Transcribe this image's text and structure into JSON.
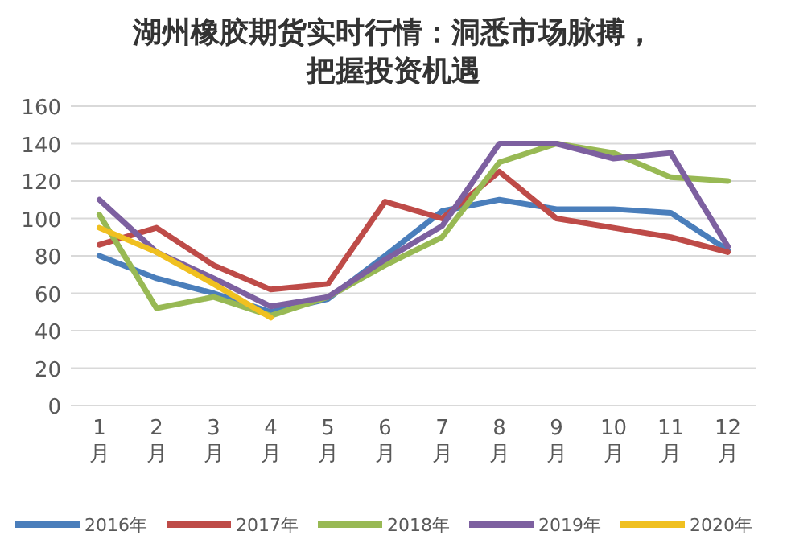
{
  "chart_data": {
    "type": "line",
    "title": "湖州橡胶期货实时行情：洞悉市场脉搏，把握投资机遇",
    "categories": [
      "1月",
      "2月",
      "3月",
      "4月",
      "5月",
      "6月",
      "7月",
      "8月",
      "9月",
      "10月",
      "11月",
      "12月"
    ],
    "series": [
      {
        "name": "2016年",
        "color": "#4a7ebb",
        "values": [
          80,
          68,
          60,
          50,
          57,
          80,
          104,
          110,
          105,
          105,
          103,
          83
        ]
      },
      {
        "name": "2017年",
        "color": "#be4b48",
        "values": [
          86,
          95,
          75,
          62,
          65,
          109,
          100,
          125,
          100,
          95,
          90,
          82
        ]
      },
      {
        "name": "2018年",
        "color": "#98b954",
        "values": [
          102,
          52,
          58,
          48,
          58,
          75,
          90,
          130,
          140,
          135,
          122,
          120
        ]
      },
      {
        "name": "2019年",
        "color": "#7d60a0",
        "values": [
          110,
          82,
          68,
          53,
          58,
          78,
          96,
          140,
          140,
          132,
          135,
          85
        ]
      },
      {
        "name": "2020年",
        "color": "#f0c020",
        "values": [
          95,
          82,
          65,
          47,
          null,
          null,
          null,
          null,
          null,
          null,
          null,
          null
        ]
      }
    ],
    "ylim": [
      0,
      160
    ],
    "yticks": [
      0,
      20,
      40,
      60,
      80,
      100,
      120,
      140,
      160
    ],
    "grid": "y",
    "legend": "bottom",
    "marker": "none",
    "line_style": "solid"
  }
}
